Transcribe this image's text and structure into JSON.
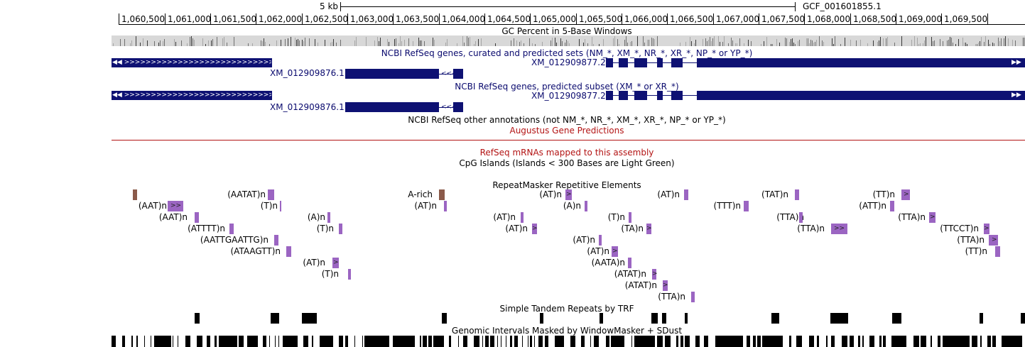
{
  "scale": {
    "label": "5 kb",
    "assembly": "GCF_001601855.1"
  },
  "ruler": {
    "labels": [
      "1,060,500",
      "1,061,000",
      "1,061,500",
      "1,062,000",
      "1,062,500",
      "1,063,000",
      "1,063,500",
      "1,064,000",
      "1,064,500",
      "1,065,000",
      "1,065,500",
      "1,066,000",
      "1,066,500",
      "1,067,000",
      "1,067,500",
      "1,068,000",
      "1,068,500",
      "1,069,000",
      "1,069,500"
    ]
  },
  "tracks": {
    "gc_percent": "GC Percent in 5-Base Windows",
    "refseq_all": "NCBI RefSeq genes, curated and predicted sets (NM_*, XM_*, NR_*, XR_*, NP_* or YP_*)",
    "refseq_predicted": "NCBI RefSeq genes, predicted subset (XM_* or XR_*)",
    "refseq_other": "NCBI RefSeq other annotations (not NM_*, NR_*, XM_*, XR_*, NP_* or YP_*)",
    "augustus": "Augustus Gene Predictions",
    "refseq_mrna": "RefSeq mRNAs mapped to this assembly",
    "cpg": "CpG Islands (Islands < 300 Bases are Light Green)",
    "repeatmasker": "RepeatMasker Repetitive Elements",
    "trf": "Simple Tandem Repeats by TRF",
    "windowmasker": "Genomic Intervals Masked by WindowMasker + SDust"
  },
  "genes": {
    "all": {
      "left_id": "XM_012909876.1",
      "right_id": "XM_012909877.2"
    },
    "predicted": {
      "left_id": "XM_012909876.1",
      "right_id": "XM_012909877.2"
    }
  },
  "repeats": [
    "(AATAT)n",
    "A-rich",
    "(AT)n",
    "(AT)n",
    "(TAT)n",
    "(TT)n",
    "(AAT)n",
    "(T)n",
    "(AT)n",
    "(A)n",
    "(TTT)n",
    "(ATT)n",
    "(AAT)n",
    "(A)n",
    "(AT)n",
    "(T)n",
    "(TTA)n",
    "(TTA)n",
    "(ATTTT)n",
    "(T)n",
    "(AT)n",
    "(TA)n",
    "(TTA)n",
    "(TTCCT)n",
    "(AATTGAATTG)n",
    "(AT)n",
    "(TTA)n",
    "(ATAAGTT)n",
    "(AT)n",
    "(TT)n",
    "(AT)n",
    "(AATA)n",
    "(T)n",
    "(ATAT)n",
    "(ATAT)n",
    "(TTA)n"
  ],
  "colors": {
    "gene": "#0e1173",
    "repeat_purple": "#9b65c2",
    "repeat_brown": "#8b5a4a",
    "augustus_red": "#b31414",
    "gc_gray": "#d8d8d8"
  }
}
